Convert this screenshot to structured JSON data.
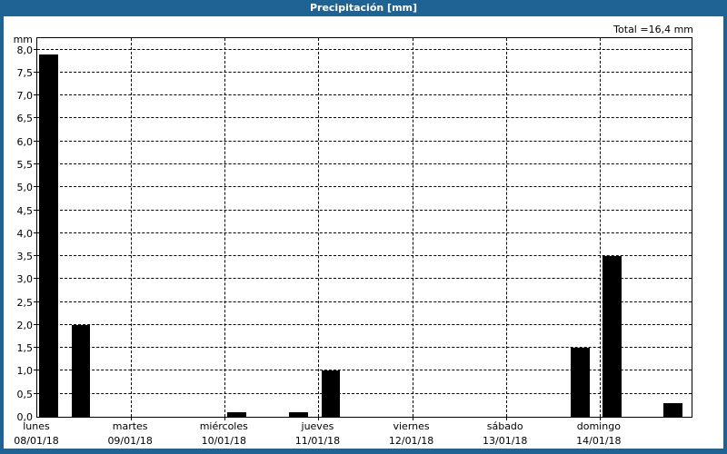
{
  "window": {
    "title": "Precipitación [mm]",
    "total_label": "Total =16,4 mm"
  },
  "colors": {
    "titlebar_bg": "#1F6394",
    "titlebar_text": "#FFFFFF",
    "window_border": "#1F6394",
    "panel_bg": "#FFFFFF",
    "bar_fill": "#000000",
    "grid_line": "#000000",
    "axis_text": "#000000"
  },
  "chart_data": {
    "type": "bar",
    "title": "Precipitación [mm]",
    "y_unit": "mm",
    "total_value_mm": 16.4,
    "ylim": [
      0,
      8.0
    ],
    "y_display_max": 8.29,
    "ytick_step": 0.5,
    "ytick_labels_top_to_bottom": [
      "8,0",
      "7,5",
      "7,0",
      "6,5",
      "6,0",
      "5,5",
      "5,0",
      "4,5",
      "4,0",
      "3,5",
      "3,0",
      "2,5",
      "2,0",
      "1,5",
      "1,0",
      "0,5",
      "0,0"
    ],
    "x_days": [
      {
        "name": "lunes",
        "date": "08/01/18"
      },
      {
        "name": "martes",
        "date": "09/01/18"
      },
      {
        "name": "miércoles",
        "date": "10/01/18"
      },
      {
        "name": "jueves",
        "date": "11/01/18"
      },
      {
        "name": "viernes",
        "date": "12/01/18"
      },
      {
        "name": "sábado",
        "date": "13/01/18"
      },
      {
        "name": "domingo",
        "date": "14/01/18"
      }
    ],
    "grid": {
      "horizontal": "dashed",
      "vertical": "dashed",
      "vertical_at_day_ticks": [
        1,
        2,
        3,
        4,
        5,
        6
      ]
    },
    "bar_width_days": 0.2,
    "bars": [
      {
        "day": "lunes",
        "date": "08/01/18",
        "value_mm": 7.9,
        "week_pos_days": 0.02
      },
      {
        "day": "lunes",
        "date": "08/01/18",
        "value_mm": 2.0,
        "week_pos_days": 0.365
      },
      {
        "day": "miércoles",
        "date": "10/01/18",
        "value_mm": 0.1,
        "week_pos_days": 2.03
      },
      {
        "day": "miércoles",
        "date": "10/01/18",
        "value_mm": 0.1,
        "week_pos_days": 2.69
      },
      {
        "day": "jueves",
        "date": "11/01/18",
        "value_mm": 1.0,
        "week_pos_days": 3.03
      },
      {
        "day": "sábado",
        "date": "13/01/18",
        "value_mm": 1.5,
        "week_pos_days": 5.69
      },
      {
        "day": "domingo",
        "date": "14/01/18",
        "value_mm": 3.5,
        "week_pos_days": 6.03
      },
      {
        "day": "domingo",
        "date": "14/01/18",
        "value_mm": 0.3,
        "week_pos_days": 6.68
      }
    ],
    "legend": "none"
  }
}
